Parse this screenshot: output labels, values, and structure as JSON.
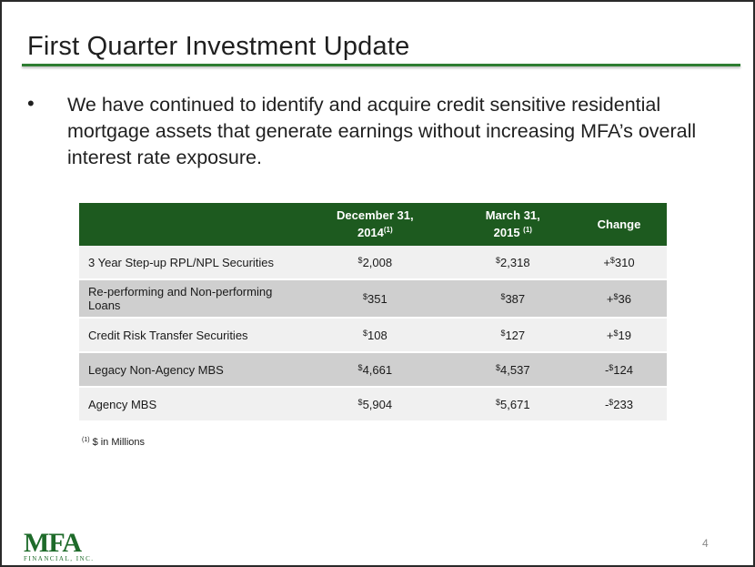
{
  "slide": {
    "title": "First Quarter Investment Update",
    "bullet_symbol": "•",
    "bullet_text": "We have continued to identify and acquire credit sensitive residential mortgage assets that generate earnings without increasing MFA’s overall interest rate exposure."
  },
  "table": {
    "headers": {
      "col1": "",
      "col2_line1": "December  31,",
      "col2_line2": "2014",
      "col2_sup": "(1)",
      "col3_line1": "March  31,",
      "col3_line2": "2015 ",
      "col3_sup": "(1)",
      "col4": "Change"
    },
    "currency_symbol": "$",
    "rows": [
      {
        "label": "3 Year Step-up RPL/NPL Securities",
        "dec_2014": "2,008",
        "mar_2015": "2,318",
        "change_sign": "+",
        "change": "310"
      },
      {
        "label": "Re-performing and Non-performing Loans",
        "dec_2014": "351",
        "mar_2015": "387",
        "change_sign": "+",
        "change": "36"
      },
      {
        "label": "Credit Risk Transfer Securities",
        "dec_2014": "108",
        "mar_2015": "127",
        "change_sign": "+",
        "change": "19"
      },
      {
        "label": "Legacy Non-Agency MBS",
        "dec_2014": "4,661",
        "mar_2015": "4,537",
        "change_sign": "-",
        "change": "124"
      },
      {
        "label": "Agency MBS",
        "dec_2014": "5,904",
        "mar_2015": "5,671",
        "change_sign": "-",
        "change": "233"
      }
    ]
  },
  "footnote": {
    "marker": "(1)",
    "text": "$ in Millions"
  },
  "page_number": "4",
  "logo": {
    "wordmark": "MFA",
    "subtitle": "FINANCIAL, INC.",
    "color": "#1e6b2a"
  },
  "colors": {
    "accent_green": "#2e7d32",
    "header_green": "#1d5a1f",
    "row_light": "#f0f0f0",
    "row_dark": "#cfcfcf"
  }
}
